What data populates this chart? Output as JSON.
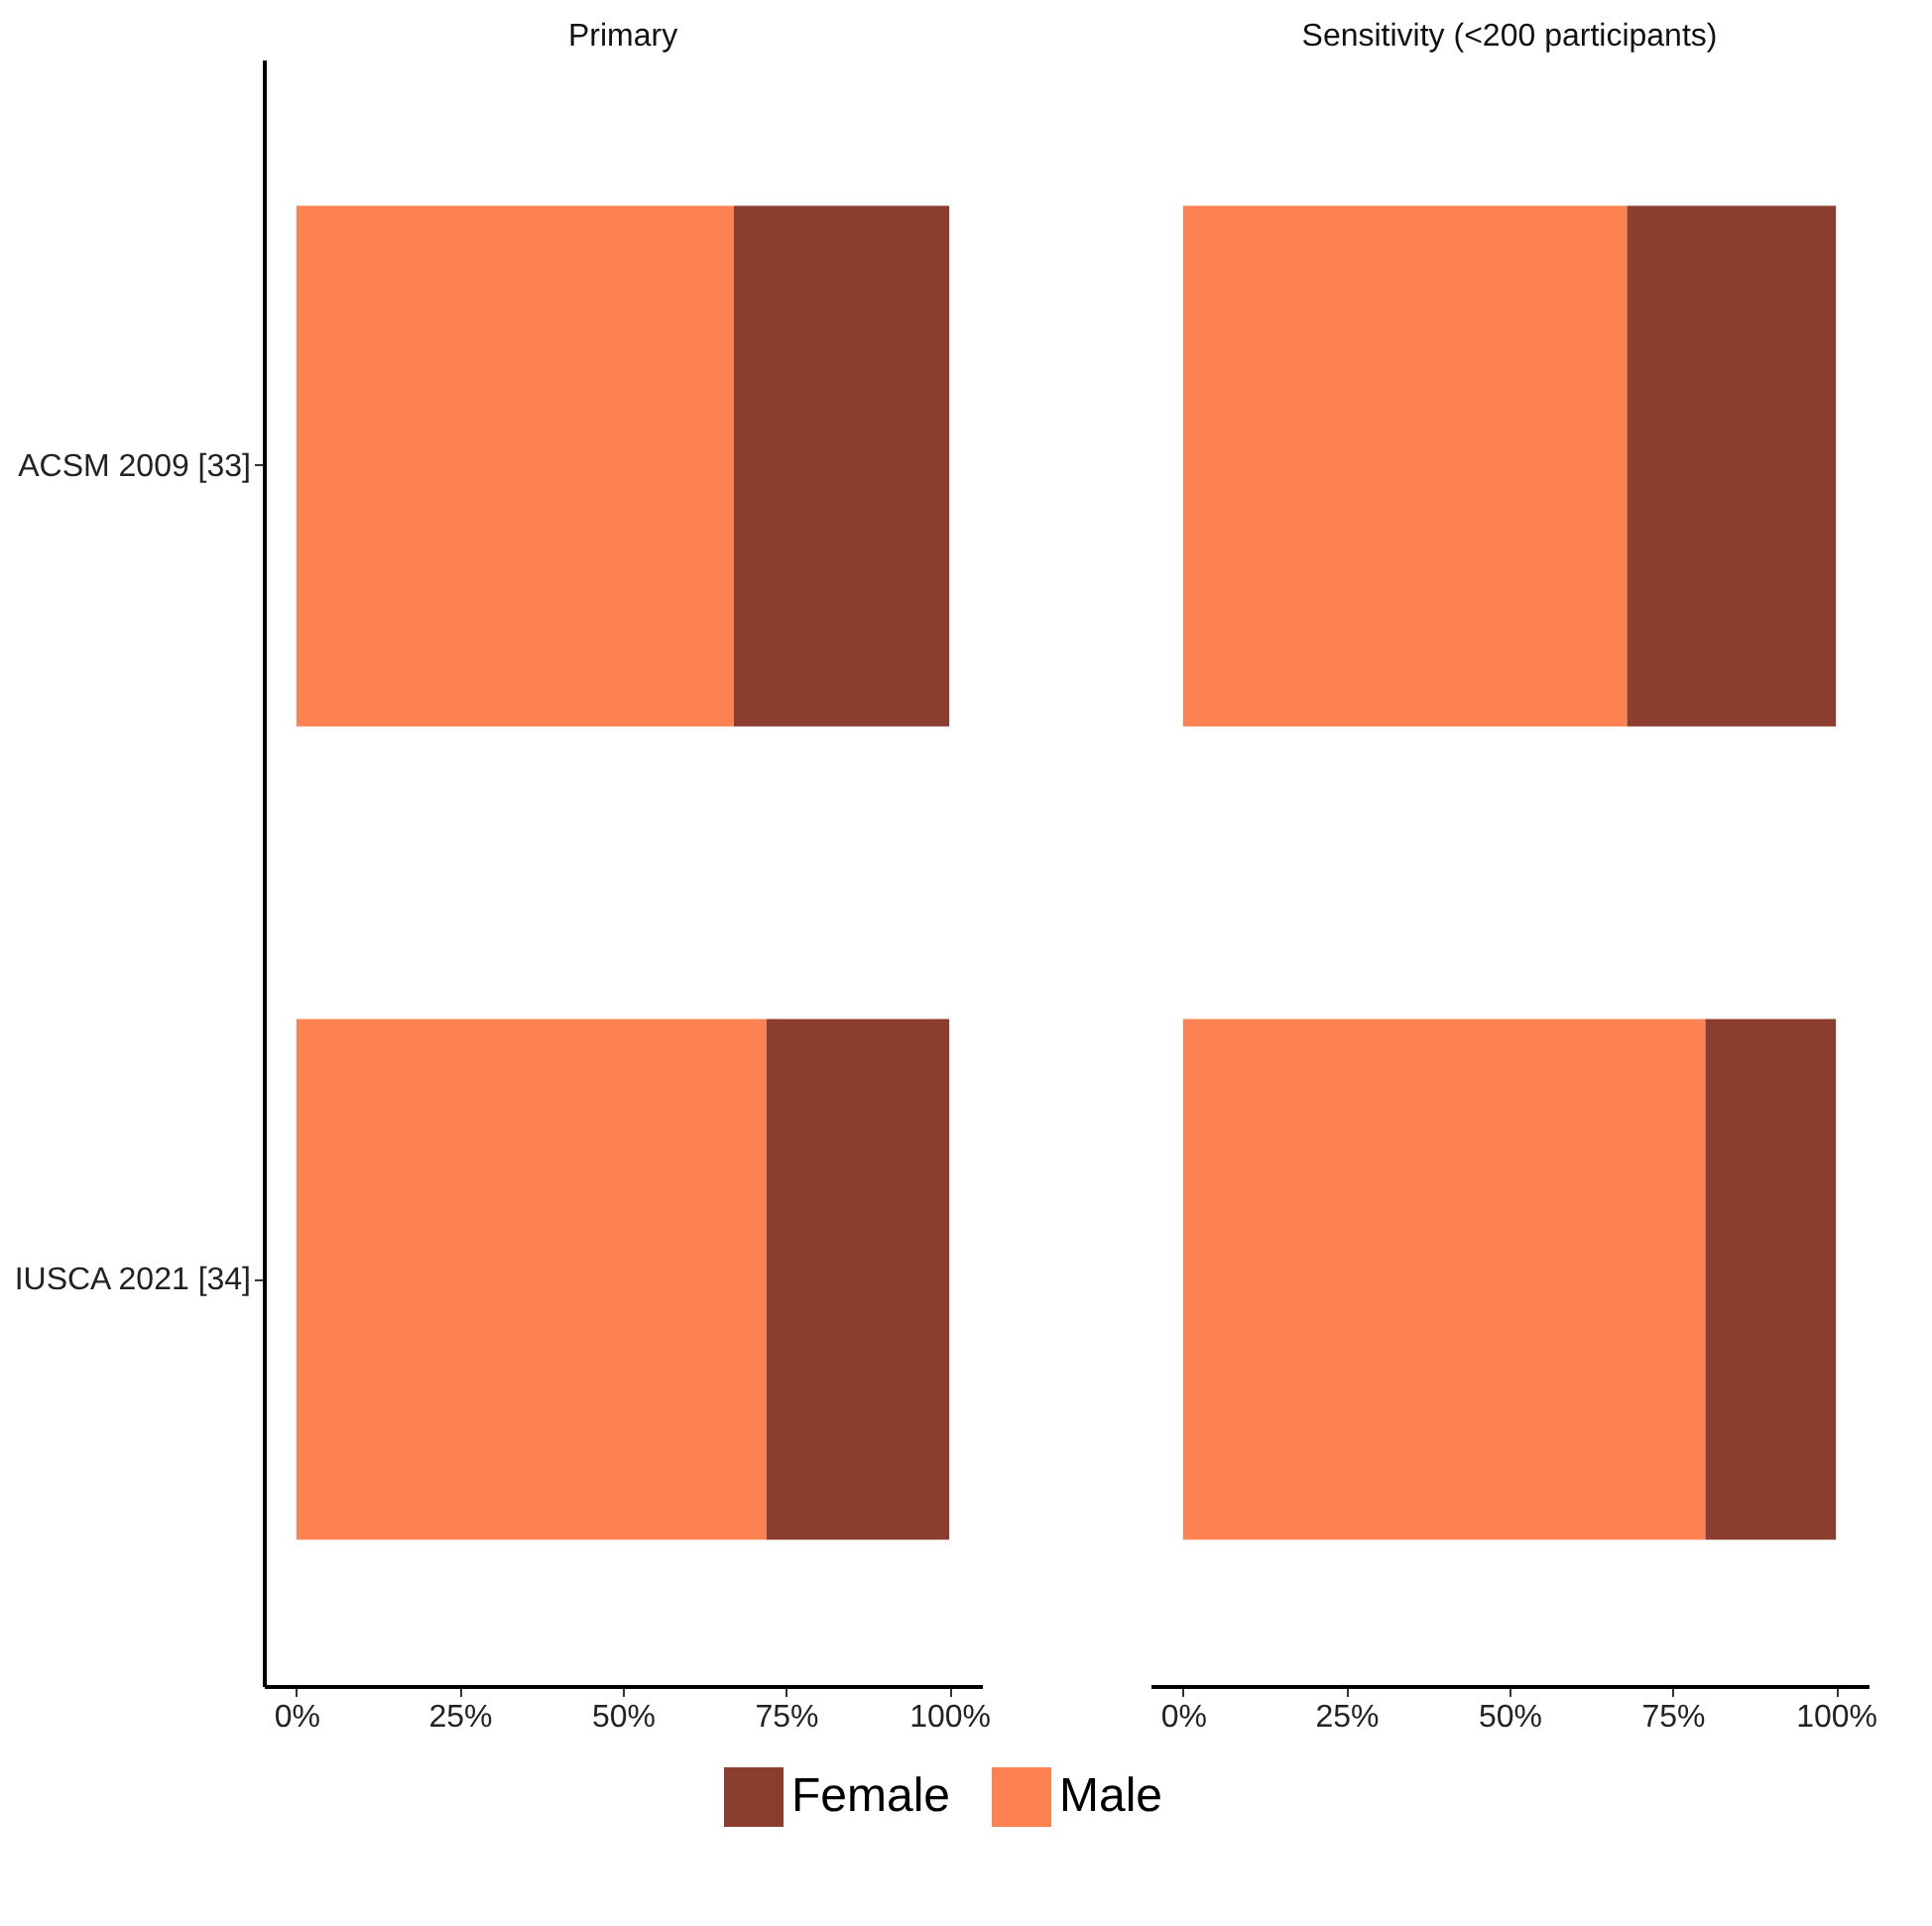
{
  "chart_data": [
    {
      "type": "bar",
      "title": "Primary",
      "orientation": "horizontal",
      "stacked": true,
      "categories": [
        "ACSM 2009 [33]",
        "IUSCA 2021 [34]"
      ],
      "series": [
        {
          "name": "Male",
          "color": "#fe8152",
          "values": [
            67,
            72
          ]
        },
        {
          "name": "Female",
          "color": "#8b3d2f",
          "values": [
            33,
            28
          ]
        }
      ],
      "xlim": [
        -5,
        105
      ],
      "xticks": [
        {
          "value": 0,
          "label": "0%"
        },
        {
          "value": 25,
          "label": "25%"
        },
        {
          "value": 50,
          "label": "50%"
        },
        {
          "value": 75,
          "label": "75%"
        },
        {
          "value": 100,
          "label": "100%"
        }
      ],
      "legend": "bottom",
      "grid": false
    },
    {
      "type": "bar",
      "title": "Sensitivity (<200 participants)",
      "orientation": "horizontal",
      "stacked": true,
      "categories": [
        "ACSM 2009 [33]",
        "IUSCA 2021 [34]"
      ],
      "series": [
        {
          "name": "Male",
          "color": "#fe8152",
          "values": [
            68,
            80
          ]
        },
        {
          "name": "Female",
          "color": "#8b3d2f",
          "values": [
            32,
            20
          ]
        }
      ],
      "xlim": [
        -5,
        105
      ],
      "xticks": [
        {
          "value": 0,
          "label": "0%"
        },
        {
          "value": 25,
          "label": "25%"
        },
        {
          "value": 50,
          "label": "50%"
        },
        {
          "value": 75,
          "label": "75%"
        },
        {
          "value": 100,
          "label": "100%"
        }
      ],
      "tick_labels": "x",
      "legend": false,
      "grid": false
    }
  ]
}
